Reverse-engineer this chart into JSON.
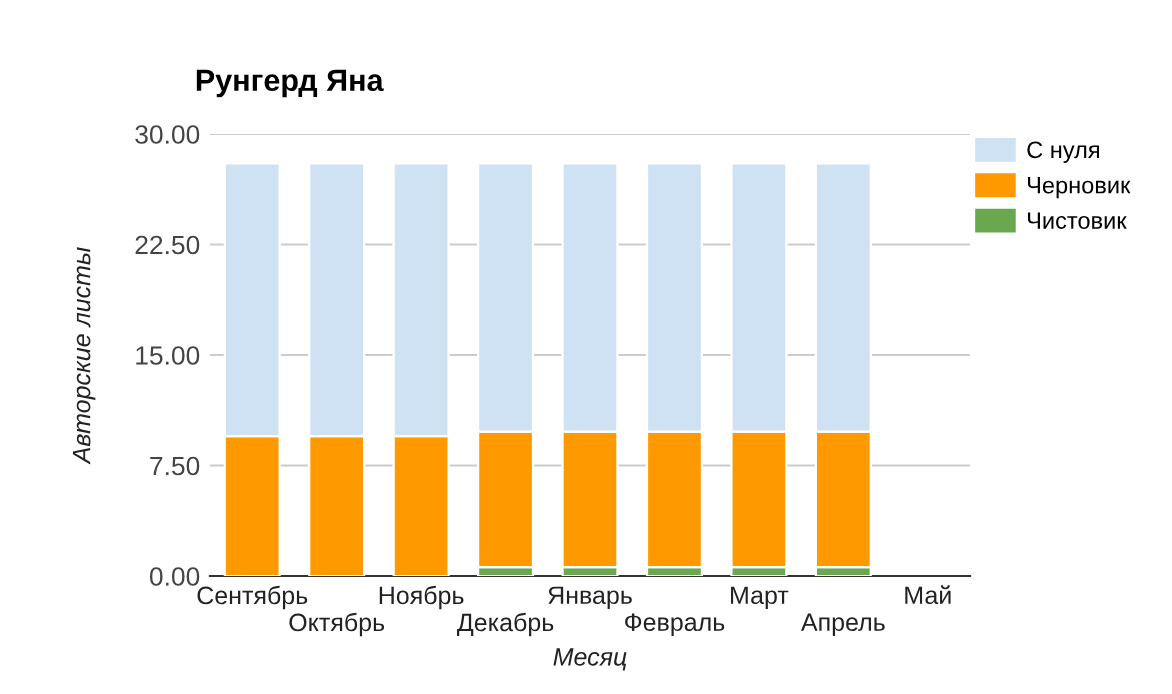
{
  "chart_data": {
    "type": "bar",
    "title": "Рунгерд Яна",
    "xlabel": "Месяц",
    "ylabel": "Авторские листы",
    "stacked": true,
    "categories": [
      "Сентябрь",
      "Октябрь",
      "Ноябрь",
      "Декабрь",
      "Январь",
      "Февраль",
      "Март",
      "Апрель",
      "Май"
    ],
    "series": [
      {
        "name": "Чистовик",
        "color": "#6aa84f",
        "values": [
          0,
          0,
          0,
          0.6,
          0.6,
          0.6,
          0.6,
          0.6,
          null
        ]
      },
      {
        "name": "Черновик",
        "color": "#ff9900",
        "values": [
          9.5,
          9.5,
          9.5,
          9.2,
          9.2,
          9.2,
          9.2,
          9.2,
          null
        ]
      },
      {
        "name": "С нуля",
        "color": "#cfe2f3",
        "values": [
          18.5,
          18.5,
          18.5,
          18.2,
          18.2,
          18.2,
          18.2,
          18.2,
          null
        ]
      }
    ],
    "ylim": [
      0,
      30
    ],
    "yticks": [
      {
        "value": 0,
        "label": "0.00"
      },
      {
        "value": 7.5,
        "label": "7.50"
      },
      {
        "value": 15,
        "label": "15.00"
      },
      {
        "value": 22.5,
        "label": "22.50"
      },
      {
        "value": 30,
        "label": "30.00"
      }
    ],
    "grid": "y",
    "legend": "right"
  }
}
